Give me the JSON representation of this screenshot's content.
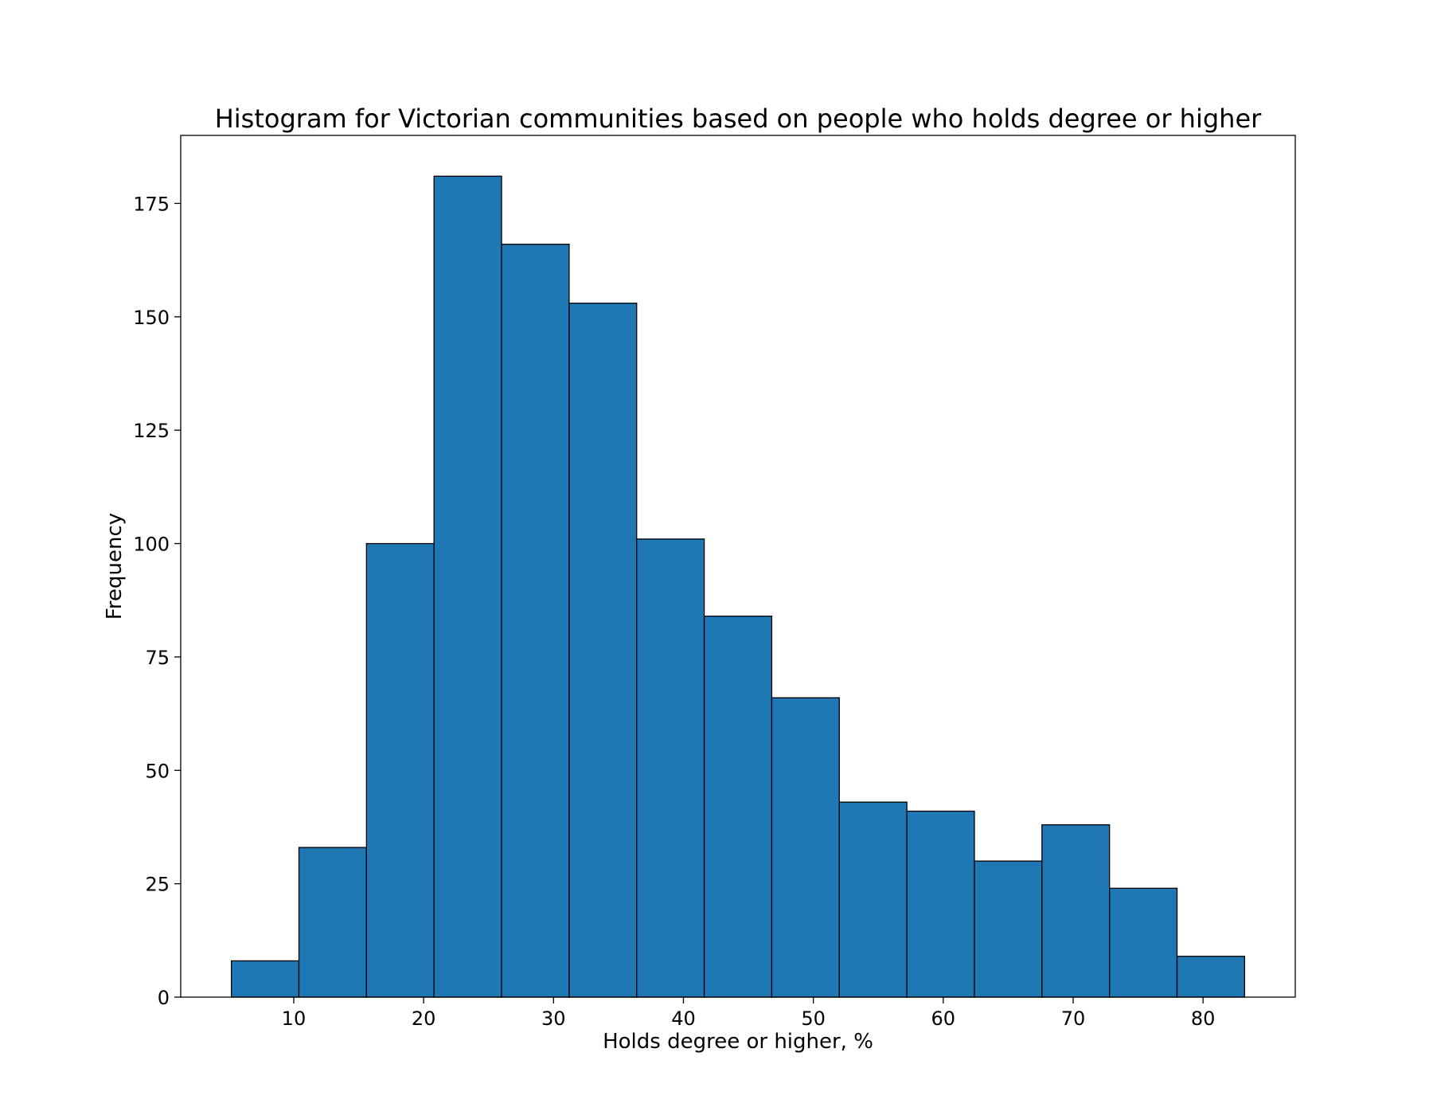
{
  "chart_data": {
    "type": "bar",
    "title": "Histogram for Victorian communities based on people who holds degree or higher",
    "xlabel": "Holds degree or higher, %",
    "ylabel": "Frequency",
    "bin_edges": [
      5.2,
      10.4,
      15.6,
      20.8,
      26.0,
      31.2,
      36.4,
      41.6,
      46.8,
      52.0,
      57.2,
      62.4,
      67.6,
      72.8,
      78.0,
      83.2
    ],
    "values": [
      8,
      33,
      100,
      181,
      166,
      153,
      101,
      84,
      66,
      43,
      41,
      30,
      38,
      24,
      9
    ],
    "xlim": [
      1.3,
      87.1
    ],
    "ylim": [
      0,
      190
    ],
    "xticks": [
      10,
      20,
      30,
      40,
      50,
      60,
      70,
      80
    ],
    "yticks": [
      0,
      25,
      50,
      75,
      100,
      125,
      150,
      175
    ],
    "grid": false,
    "legend": "none",
    "bar_color": "#1f77b4",
    "edge_color": "#000000"
  }
}
